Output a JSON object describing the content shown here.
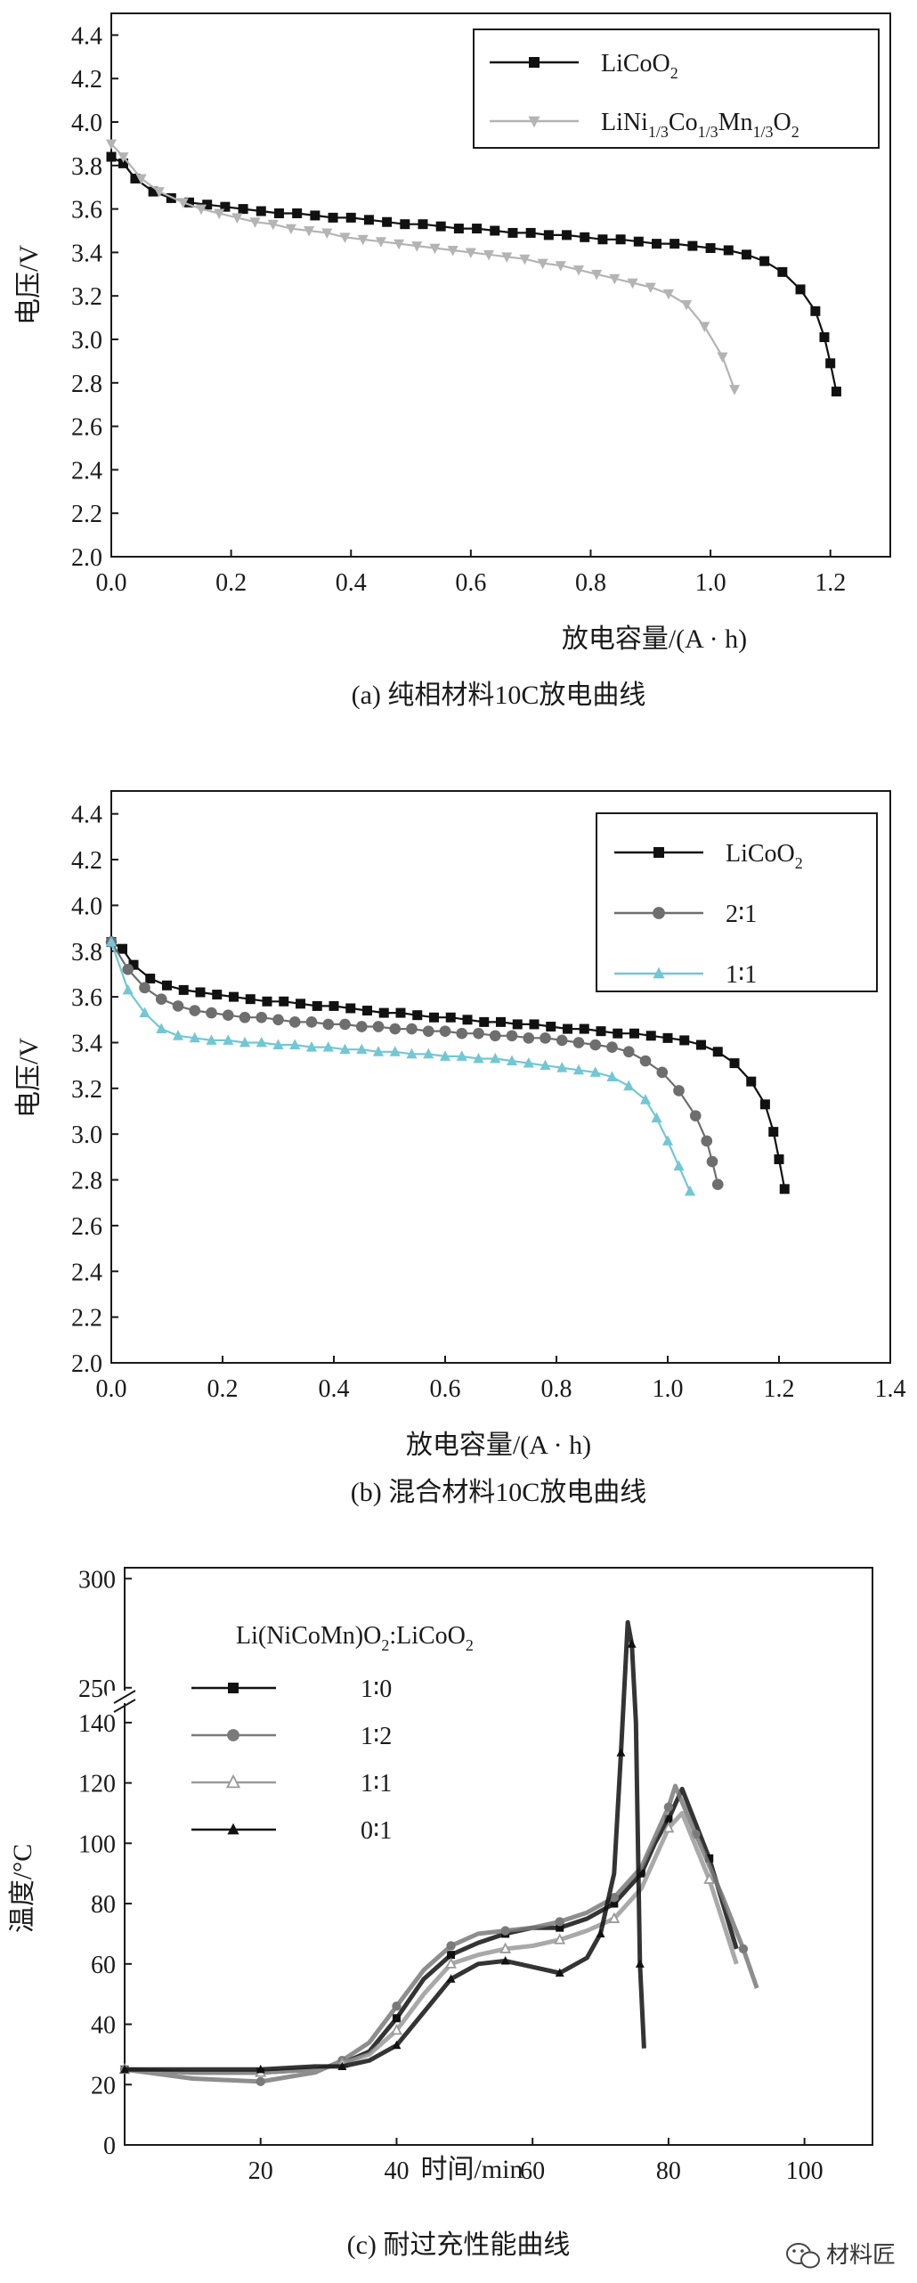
{
  "watermark": {
    "text": "材料匠",
    "icon": "wechat-icon"
  },
  "chart_data": [
    {
      "type": "line",
      "caption": "(a)  纯相材料10C放电曲线",
      "xlabel": "放电容量/(A · h)",
      "ylabel": "电压/V",
      "xlim": [
        0,
        1.3
      ],
      "ylim": [
        2.0,
        4.5
      ],
      "xticks": [
        "0.0",
        "0.2",
        "0.4",
        "0.6",
        "0.8",
        "1.0",
        "1.2"
      ],
      "yticks": [
        "2.0",
        "2.2",
        "2.4",
        "2.6",
        "2.8",
        "3.0",
        "3.2",
        "3.4",
        "3.6",
        "3.8",
        "4.0",
        "4.2",
        "4.4"
      ],
      "legend_position": "top-right",
      "series": [
        {
          "name": "LiCoO₂",
          "legend": {
            "base": "LiCoO",
            "parts": [
              {
                "t": "2",
                "s": true
              }
            ]
          },
          "color": "#111111",
          "marker": "square",
          "x": [
            0.0,
            0.02,
            0.04,
            0.07,
            0.1,
            0.13,
            0.16,
            0.19,
            0.22,
            0.25,
            0.28,
            0.31,
            0.34,
            0.37,
            0.4,
            0.43,
            0.46,
            0.49,
            0.52,
            0.55,
            0.58,
            0.61,
            0.64,
            0.67,
            0.7,
            0.73,
            0.76,
            0.79,
            0.82,
            0.85,
            0.88,
            0.91,
            0.94,
            0.97,
            1.0,
            1.03,
            1.06,
            1.09,
            1.12,
            1.15,
            1.175,
            1.19,
            1.2,
            1.21
          ],
          "y": [
            3.84,
            3.81,
            3.74,
            3.68,
            3.65,
            3.63,
            3.62,
            3.61,
            3.6,
            3.59,
            3.58,
            3.58,
            3.57,
            3.56,
            3.56,
            3.55,
            3.54,
            3.53,
            3.53,
            3.52,
            3.51,
            3.51,
            3.5,
            3.49,
            3.49,
            3.48,
            3.48,
            3.47,
            3.46,
            3.46,
            3.45,
            3.44,
            3.44,
            3.43,
            3.42,
            3.41,
            3.39,
            3.36,
            3.31,
            3.23,
            3.13,
            3.01,
            2.89,
            2.76
          ]
        },
        {
          "name": "LiNi₁/₃Co₁/₃Mn₁/₃O₂",
          "legend": {
            "base": "LiNi",
            "parts": [
              {
                "t": "1/3",
                "s": true
              },
              {
                "t": "Co",
                "s": false
              },
              {
                "t": "1/3",
                "s": true
              },
              {
                "t": "Mn",
                "s": false
              },
              {
                "t": "1/3",
                "s": true
              },
              {
                "t": "O",
                "s": false
              },
              {
                "t": "2",
                "s": true
              }
            ]
          },
          "color": "#b4b4b4",
          "marker": "triangle-down",
          "x": [
            0.0,
            0.02,
            0.05,
            0.08,
            0.12,
            0.15,
            0.18,
            0.21,
            0.24,
            0.27,
            0.3,
            0.33,
            0.36,
            0.39,
            0.42,
            0.45,
            0.48,
            0.51,
            0.54,
            0.57,
            0.6,
            0.63,
            0.66,
            0.69,
            0.72,
            0.75,
            0.78,
            0.81,
            0.84,
            0.87,
            0.9,
            0.93,
            0.96,
            0.99,
            1.02,
            1.04
          ],
          "y": [
            3.9,
            3.84,
            3.74,
            3.68,
            3.63,
            3.6,
            3.58,
            3.56,
            3.54,
            3.53,
            3.51,
            3.5,
            3.49,
            3.47,
            3.46,
            3.45,
            3.44,
            3.43,
            3.42,
            3.41,
            3.4,
            3.39,
            3.38,
            3.37,
            3.35,
            3.34,
            3.32,
            3.3,
            3.28,
            3.26,
            3.24,
            3.21,
            3.16,
            3.06,
            2.92,
            2.77
          ]
        }
      ]
    },
    {
      "type": "line",
      "caption": "(b)  混合材料10C放电曲线",
      "xlabel": "放电容量/(A · h)",
      "ylabel": "电压/V",
      "xlim": [
        0,
        1.4
      ],
      "ylim": [
        2.0,
        4.5
      ],
      "xticks": [
        "0.0",
        "0.2",
        "0.4",
        "0.6",
        "0.8",
        "1.0",
        "1.2",
        "1.4"
      ],
      "yticks": [
        "2.0",
        "2.2",
        "2.4",
        "2.6",
        "2.8",
        "3.0",
        "3.2",
        "3.4",
        "3.6",
        "3.8",
        "4.0",
        "4.2",
        "4.4"
      ],
      "legend_position": "top-right",
      "series": [
        {
          "name": "LiCoO₂",
          "legend": {
            "base": "LiCoO",
            "parts": [
              {
                "t": "2",
                "s": true
              }
            ]
          },
          "color": "#111111",
          "marker": "square",
          "x": [
            0.0,
            0.02,
            0.04,
            0.07,
            0.1,
            0.13,
            0.16,
            0.19,
            0.22,
            0.25,
            0.28,
            0.31,
            0.34,
            0.37,
            0.4,
            0.43,
            0.46,
            0.49,
            0.52,
            0.55,
            0.58,
            0.61,
            0.64,
            0.67,
            0.7,
            0.73,
            0.76,
            0.79,
            0.82,
            0.85,
            0.88,
            0.91,
            0.94,
            0.97,
            1.0,
            1.03,
            1.06,
            1.09,
            1.12,
            1.15,
            1.175,
            1.19,
            1.2,
            1.21
          ],
          "y": [
            3.84,
            3.81,
            3.74,
            3.68,
            3.65,
            3.63,
            3.62,
            3.61,
            3.6,
            3.59,
            3.58,
            3.58,
            3.57,
            3.56,
            3.56,
            3.55,
            3.54,
            3.53,
            3.53,
            3.52,
            3.51,
            3.51,
            3.5,
            3.49,
            3.49,
            3.48,
            3.48,
            3.47,
            3.46,
            3.46,
            3.45,
            3.44,
            3.44,
            3.43,
            3.42,
            3.41,
            3.39,
            3.36,
            3.31,
            3.23,
            3.13,
            3.01,
            2.89,
            2.76
          ]
        },
        {
          "name": "2∶1",
          "legend": {
            "base": "2∶1",
            "parts": []
          },
          "color": "#6e6e6e",
          "marker": "circle",
          "x": [
            0.0,
            0.03,
            0.06,
            0.09,
            0.12,
            0.15,
            0.18,
            0.21,
            0.24,
            0.27,
            0.3,
            0.33,
            0.36,
            0.39,
            0.42,
            0.45,
            0.48,
            0.51,
            0.54,
            0.57,
            0.6,
            0.63,
            0.66,
            0.69,
            0.72,
            0.75,
            0.78,
            0.81,
            0.84,
            0.87,
            0.9,
            0.93,
            0.96,
            0.99,
            1.02,
            1.05,
            1.07,
            1.08,
            1.09
          ],
          "y": [
            3.84,
            3.72,
            3.64,
            3.59,
            3.56,
            3.54,
            3.53,
            3.52,
            3.51,
            3.51,
            3.5,
            3.49,
            3.49,
            3.48,
            3.48,
            3.47,
            3.47,
            3.46,
            3.46,
            3.45,
            3.45,
            3.44,
            3.44,
            3.43,
            3.43,
            3.42,
            3.42,
            3.41,
            3.4,
            3.39,
            3.38,
            3.36,
            3.32,
            3.27,
            3.19,
            3.08,
            2.97,
            2.88,
            2.78
          ]
        },
        {
          "name": "1∶1",
          "legend": {
            "base": "1∶1",
            "parts": []
          },
          "color": "#72c7d3",
          "marker": "triangle-up",
          "x": [
            0.0,
            0.03,
            0.06,
            0.09,
            0.12,
            0.15,
            0.18,
            0.21,
            0.24,
            0.27,
            0.3,
            0.33,
            0.36,
            0.39,
            0.42,
            0.45,
            0.48,
            0.51,
            0.54,
            0.57,
            0.6,
            0.63,
            0.66,
            0.69,
            0.72,
            0.75,
            0.78,
            0.81,
            0.84,
            0.87,
            0.9,
            0.93,
            0.96,
            0.98,
            1.0,
            1.02,
            1.04
          ],
          "y": [
            3.84,
            3.63,
            3.53,
            3.46,
            3.43,
            3.42,
            3.41,
            3.41,
            3.4,
            3.4,
            3.39,
            3.39,
            3.38,
            3.38,
            3.37,
            3.37,
            3.36,
            3.36,
            3.35,
            3.35,
            3.34,
            3.34,
            3.33,
            3.33,
            3.32,
            3.31,
            3.3,
            3.29,
            3.28,
            3.27,
            3.25,
            3.21,
            3.15,
            3.07,
            2.97,
            2.86,
            2.75
          ]
        }
      ]
    },
    {
      "type": "line",
      "caption": "(c)  耐过充性能曲线",
      "xlabel": "时间/min",
      "ylabel": "温度/°C",
      "xlim": [
        0,
        110
      ],
      "ylim": [
        0,
        305
      ],
      "axis_break": {
        "lower_max": 150,
        "upper_min": 245
      },
      "xticks": [
        "20",
        "40",
        "60",
        "80",
        "100"
      ],
      "yticks": [
        "0",
        "20",
        "40",
        "60",
        "80",
        "100",
        "120",
        "140",
        "250",
        "300"
      ],
      "legend_title": "Li(NiCoMn)O₂:LiCoO₂",
      "legend_title_parts": {
        "base": "Li(NiCoMn)O",
        "parts": [
          {
            "t": "2",
            "s": true
          },
          {
            "t": ":LiCoO",
            "s": false
          },
          {
            "t": "2",
            "s": true
          }
        ]
      },
      "legend_position": "top-left",
      "series": [
        {
          "name": "1∶0",
          "color": "#111111",
          "marker": "square",
          "x": [
            0,
            10,
            20,
            28,
            32,
            36,
            40,
            44,
            48,
            52,
            56,
            60,
            64,
            68,
            72,
            74,
            76,
            78,
            80,
            82,
            86,
            90
          ],
          "y": [
            25,
            24,
            24,
            25,
            27,
            31,
            42,
            55,
            63,
            67,
            70,
            72,
            72,
            75,
            80,
            85,
            90,
            100,
            108,
            118,
            95,
            65
          ]
        },
        {
          "name": "1∶2",
          "color": "#7a7a7a",
          "marker": "circle",
          "x": [
            0,
            10,
            20,
            28,
            32,
            36,
            40,
            44,
            48,
            52,
            56,
            60,
            64,
            68,
            72,
            76,
            80,
            81,
            84,
            88,
            91,
            93
          ],
          "y": [
            25,
            22,
            21,
            24,
            28,
            34,
            46,
            58,
            66,
            70,
            71,
            72,
            74,
            77,
            82,
            92,
            112,
            119,
            103,
            82,
            65,
            52
          ]
        },
        {
          "name": "1∶1",
          "color": "#9a9a9a",
          "marker": "triangle-open",
          "x": [
            0,
            10,
            20,
            28,
            32,
            36,
            40,
            44,
            48,
            52,
            56,
            60,
            64,
            68,
            72,
            76,
            80,
            82,
            86,
            90
          ],
          "y": [
            25,
            24,
            24,
            25,
            27,
            30,
            38,
            50,
            60,
            63,
            65,
            66,
            68,
            71,
            75,
            85,
            105,
            110,
            88,
            60
          ]
        },
        {
          "name": "0∶1",
          "color": "#111111",
          "marker": "triangle-up",
          "x": [
            0,
            10,
            20,
            28,
            32,
            36,
            40,
            44,
            48,
            52,
            56,
            60,
            64,
            68,
            70,
            72,
            73,
            74,
            74.6,
            75.2,
            75.8,
            76.4
          ],
          "y": [
            25,
            25,
            25,
            26,
            26,
            28,
            33,
            44,
            55,
            60,
            61,
            59,
            57,
            62,
            70,
            90,
            130,
            280,
            270,
            140,
            60,
            32
          ]
        }
      ]
    }
  ]
}
